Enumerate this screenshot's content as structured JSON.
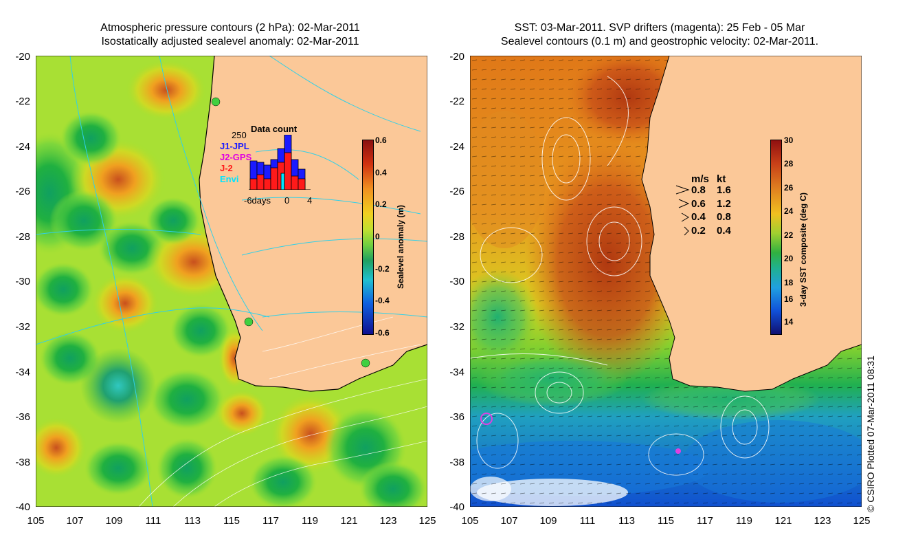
{
  "left": {
    "title_line1": "Atmospheric pressure contours (2 hPa): 02-Mar-2011",
    "title_line2": "Isostatically adjusted sealevel anomaly: 02-Mar-2011",
    "y_ticks": [
      "-20",
      "-22",
      "-24",
      "-26",
      "-28",
      "-30",
      "-32",
      "-34",
      "-36",
      "-38",
      "-40"
    ],
    "x_ticks": [
      "105",
      "107",
      "109",
      "111",
      "113",
      "115",
      "117",
      "119",
      "121",
      "123",
      "125"
    ],
    "colorbar_label": "Sealevel anomaly (m)",
    "colorbar_ticks": [
      "0.6",
      "0.4",
      "0.2",
      "0",
      "-0.2",
      "-0.4",
      "-0.6"
    ],
    "inset": {
      "title": "Data count",
      "max_label": "250",
      "series": [
        "J1-JPL",
        "J2-GPS",
        "J-2",
        "Envi"
      ],
      "series_colors": [
        "#1a1aff",
        "#e000e0",
        "#ff1a1a",
        "#00e5ff"
      ],
      "x_left_label": "-6days",
      "x_mid_label": "0",
      "x_right_label": "4"
    }
  },
  "right": {
    "title_line1": "SST: 03-Mar-2011. SVP drifters (magenta): 25 Feb - 05 Mar",
    "title_line2": "Sealevel contours (0.1 m) and geostrophic velocity: 02-Mar-2011.",
    "y_ticks": [
      "-20",
      "-22",
      "-24",
      "-26",
      "-28",
      "-30",
      "-32",
      "-34",
      "-36",
      "-38",
      "-40"
    ],
    "x_ticks": [
      "105",
      "107",
      "109",
      "111",
      "113",
      "115",
      "117",
      "119",
      "121",
      "123",
      "125"
    ],
    "colorbar_label": "3-day SST composite (deg C)",
    "colorbar_ticks": [
      "30",
      "28",
      "26",
      "24",
      "22",
      "20",
      "18",
      "16",
      "14"
    ],
    "speed_key": {
      "header_ms": "m/s",
      "header_kt": "kt",
      "rows": [
        {
          "ms": "0.8",
          "kt": "1.6"
        },
        {
          "ms": "0.6",
          "kt": "1.2"
        },
        {
          "ms": "0.4",
          "kt": "0.8"
        },
        {
          "ms": "0.2",
          "kt": "0.4"
        }
      ]
    }
  },
  "credit": "© CSIRO Plotted 07-Mar-2011 08:31"
}
